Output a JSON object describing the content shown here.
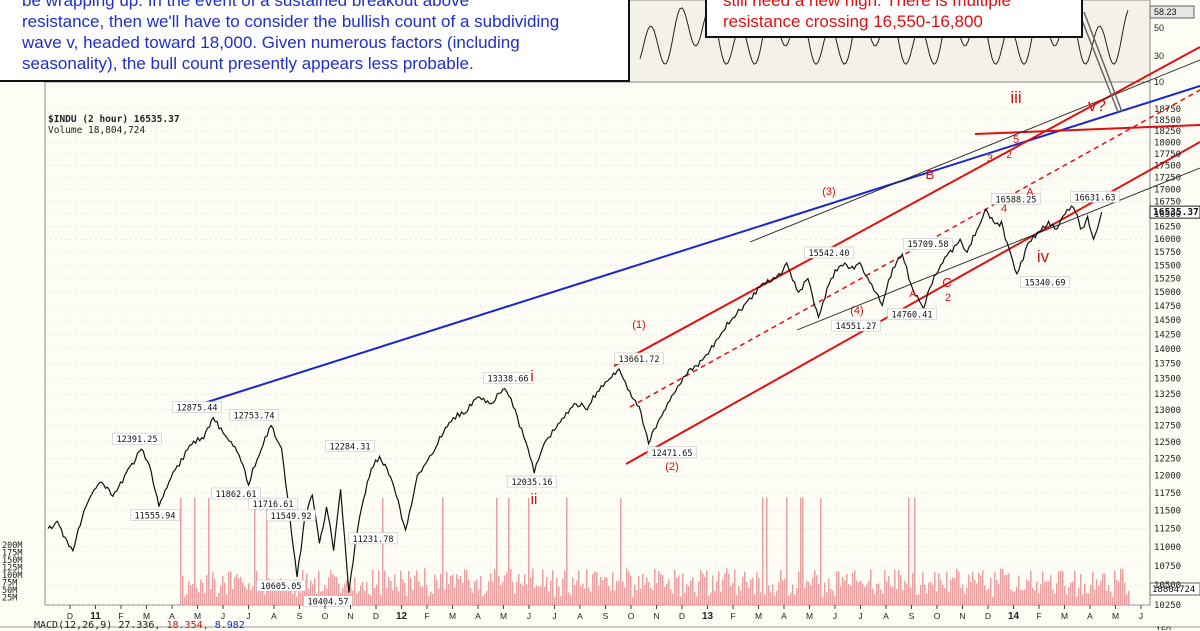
{
  "notes": {
    "left_lines": [
      "be wrapping up.  In the event of a sustained breakout above",
      "resistance, then we'll have to consider the bullish count of a subdividing",
      "wave v, headed toward 18,000.  Given numerous factors (including",
      "seasonality), the bull count presently appears less probable."
    ],
    "right_lines": [
      "still need a new high.  There is multiple",
      "resistance crossing 16,550-16,800"
    ]
  },
  "header": {
    "symbol": "$INDU (2 hour) 16535.37",
    "volume": "Volume 18,804,724"
  },
  "macd_label": {
    "name": "MACD(12,26,9)",
    "v1": "27.336,",
    "v2": "18.354,",
    "v3": "8.982"
  },
  "colors": {
    "price": "#111111",
    "channel_red": "#e01010",
    "trend_blue": "#1428d0",
    "volume_bar": "#e8a0a0",
    "label_box": "#ffffff",
    "grid": "#d8d8d0",
    "wave_label": "#d01010"
  },
  "chart_data": {
    "type": "line",
    "title": "$INDU (2 hour) 16535.37",
    "ylim": [
      10250,
      19000
    ],
    "y_scale": "log",
    "right_axis_ticks": [
      "18750",
      "18500",
      "18250",
      "18000",
      "17750",
      "17500",
      "17250",
      "17000",
      "16750",
      "16500",
      "16250",
      "16000",
      "15750",
      "15500",
      "15250",
      "15000",
      "14750",
      "14500",
      "14250",
      "14000",
      "13750",
      "13500",
      "13250",
      "13000",
      "12750",
      "12500",
      "12250",
      "12000",
      "11750",
      "11500",
      "11250",
      "11000",
      "10750",
      "10500",
      "10250"
    ],
    "rsi_ticks": [
      "50",
      "30",
      "10"
    ],
    "rsi_value": "58.23",
    "last_price_tag": "16535.37",
    "volume_tag": "18804724",
    "volume_ticks": [
      "200M",
      "175M",
      "150M",
      "125M",
      "100M",
      "75M",
      "50M",
      "25M"
    ],
    "x_ticks": [
      "D",
      "11",
      "F",
      "M",
      "A",
      "M",
      "J",
      "J",
      "A",
      "S",
      "O",
      "N",
      "D",
      "12",
      "F",
      "M",
      "A",
      "M",
      "J",
      "J",
      "A",
      "S",
      "O",
      "N",
      "D",
      "13",
      "F",
      "M",
      "A",
      "M",
      "J",
      "J",
      "A",
      "S",
      "O",
      "N",
      "D",
      "14",
      "F",
      "M",
      "A",
      "M",
      "J"
    ],
    "macd_tick": "150",
    "anchors": [
      {
        "t": 0.0,
        "v": 11250
      },
      {
        "t": 0.8,
        "v": 11350
      },
      {
        "t": 2.1,
        "v": 10950
      },
      {
        "t": 3.2,
        "v": 11550
      },
      {
        "t": 4.4,
        "v": 11900
      },
      {
        "t": 5.5,
        "v": 11700
      },
      {
        "t": 6.8,
        "v": 12100
      },
      {
        "t": 7.9,
        "v": 12391.25
      },
      {
        "t": 8.6,
        "v": 12150
      },
      {
        "t": 9.4,
        "v": 11555.94
      },
      {
        "t": 10.6,
        "v": 12050
      },
      {
        "t": 12.0,
        "v": 12450
      },
      {
        "t": 13.2,
        "v": 12550
      },
      {
        "t": 14.0,
        "v": 12875.44
      },
      {
        "t": 15.0,
        "v": 12600
      },
      {
        "t": 16.2,
        "v": 12300
      },
      {
        "t": 17.0,
        "v": 11862.61
      },
      {
        "t": 17.9,
        "v": 12300
      },
      {
        "t": 18.9,
        "v": 12753.74
      },
      {
        "t": 19.8,
        "v": 12400
      },
      {
        "t": 20.3,
        "v": 11700
      },
      {
        "t": 21.1,
        "v": 10605.05
      },
      {
        "t": 21.8,
        "v": 11450
      },
      {
        "t": 22.4,
        "v": 11716.61
      },
      {
        "t": 23.0,
        "v": 11050
      },
      {
        "t": 23.6,
        "v": 11549.92
      },
      {
        "t": 24.2,
        "v": 10950
      },
      {
        "t": 24.8,
        "v": 11800
      },
      {
        "t": 25.5,
        "v": 10404.57
      },
      {
        "t": 26.4,
        "v": 11400
      },
      {
        "t": 27.4,
        "v": 12100
      },
      {
        "t": 28.1,
        "v": 12284.31
      },
      {
        "t": 29.2,
        "v": 11900
      },
      {
        "t": 30.3,
        "v": 11231.78
      },
      {
        "t": 31.3,
        "v": 12000
      },
      {
        "t": 32.7,
        "v": 12350
      },
      {
        "t": 34.0,
        "v": 12800
      },
      {
        "t": 35.4,
        "v": 12950
      },
      {
        "t": 36.4,
        "v": 13200
      },
      {
        "t": 37.6,
        "v": 13100
      },
      {
        "t": 38.7,
        "v": 13338.66
      },
      {
        "t": 39.6,
        "v": 13000
      },
      {
        "t": 40.5,
        "v": 12500
      },
      {
        "t": 41.2,
        "v": 12035.16
      },
      {
        "t": 42.1,
        "v": 12500
      },
      {
        "t": 43.4,
        "v": 12800
      },
      {
        "t": 44.6,
        "v": 13100
      },
      {
        "t": 45.7,
        "v": 13000
      },
      {
        "t": 46.7,
        "v": 13300
      },
      {
        "t": 47.6,
        "v": 13500
      },
      {
        "t": 48.4,
        "v": 13661.72
      },
      {
        "t": 49.3,
        "v": 13300
      },
      {
        "t": 50.1,
        "v": 13050
      },
      {
        "t": 50.9,
        "v": 12471.65
      },
      {
        "t": 52.0,
        "v": 12900
      },
      {
        "t": 53.2,
        "v": 13300
      },
      {
        "t": 54.3,
        "v": 13650
      },
      {
        "t": 55.6,
        "v": 13850
      },
      {
        "t": 56.9,
        "v": 14200
      },
      {
        "t": 58.2,
        "v": 14550
      },
      {
        "t": 59.3,
        "v": 14850
      },
      {
        "t": 60.5,
        "v": 15150
      },
      {
        "t": 61.8,
        "v": 15300
      },
      {
        "t": 62.6,
        "v": 15542.4
      },
      {
        "t": 63.6,
        "v": 15000
      },
      {
        "t": 64.4,
        "v": 15250
      },
      {
        "t": 65.3,
        "v": 14551.27
      },
      {
        "t": 66.2,
        "v": 15150
      },
      {
        "t": 67.2,
        "v": 15500
      },
      {
        "t": 68.0,
        "v": 15450
      },
      {
        "t": 68.8,
        "v": 15550
      },
      {
        "t": 69.8,
        "v": 15150
      },
      {
        "t": 70.7,
        "v": 14760.41
      },
      {
        "t": 71.6,
        "v": 15450
      },
      {
        "t": 72.4,
        "v": 15709.58
      },
      {
        "t": 73.3,
        "v": 15050
      },
      {
        "t": 74.2,
        "v": 14700
      },
      {
        "t": 75.1,
        "v": 15300
      },
      {
        "t": 76.0,
        "v": 15650
      },
      {
        "t": 77.3,
        "v": 16000
      },
      {
        "t": 77.9,
        "v": 15750
      },
      {
        "t": 78.9,
        "v": 16250
      },
      {
        "t": 79.5,
        "v": 16588.25
      },
      {
        "t": 80.3,
        "v": 16300
      },
      {
        "t": 80.8,
        "v": 16350
      },
      {
        "t": 81.6,
        "v": 15700
      },
      {
        "t": 82.1,
        "v": 15340.69
      },
      {
        "t": 83.0,
        "v": 15900
      },
      {
        "t": 84.0,
        "v": 16150
      },
      {
        "t": 84.8,
        "v": 16350
      },
      {
        "t": 85.5,
        "v": 16200
      },
      {
        "t": 86.2,
        "v": 16500
      },
      {
        "t": 86.9,
        "v": 16631.63
      },
      {
        "t": 87.5,
        "v": 16200
      },
      {
        "t": 88.1,
        "v": 16450
      },
      {
        "t": 88.6,
        "v": 16000
      },
      {
        "t": 89.3,
        "v": 16535.37
      }
    ],
    "peaks": [
      {
        "v": 12391.25,
        "label": "12391.25"
      },
      {
        "v": 11555.94,
        "label": "11555.94"
      },
      {
        "v": 12875.44,
        "label": "12875.44"
      },
      {
        "v": 11862.61,
        "label": "11862.61"
      },
      {
        "v": 12753.74,
        "label": "12753.74"
      },
      {
        "v": 11716.61,
        "label": "11716.61"
      },
      {
        "v": 11549.92,
        "label": "11549.92"
      },
      {
        "v": 10605.05,
        "label": "10605.05"
      },
      {
        "v": 10404.57,
        "label": "10404.57"
      },
      {
        "v": 12284.31,
        "label": "12284.31"
      },
      {
        "v": 11231.78,
        "label": "11231.78"
      },
      {
        "v": 13338.66,
        "label": "13338.66"
      },
      {
        "v": 12035.16,
        "label": "12035.16"
      },
      {
        "v": 13661.72,
        "label": "13661.72"
      },
      {
        "v": 12471.65,
        "label": "12471.65"
      },
      {
        "v": 15542.4,
        "label": "15542.40"
      },
      {
        "v": 14551.27,
        "label": "14551.27"
      },
      {
        "v": 15709.58,
        "label": "15709.58"
      },
      {
        "v": 14760.41,
        "label": "14760.41"
      },
      {
        "v": 16588.25,
        "label": "16588.25"
      },
      {
        "v": 15340.69,
        "label": "15340.69"
      },
      {
        "v": 16631.63,
        "label": "16631.63"
      }
    ],
    "wave_labels": [
      "i",
      "ii",
      "iii",
      "iv",
      "v?",
      "(1)",
      "(2)",
      "(3)",
      "(4)",
      "A",
      "B",
      "C",
      "2",
      "3",
      "4",
      "5",
      "A",
      "2"
    ]
  }
}
